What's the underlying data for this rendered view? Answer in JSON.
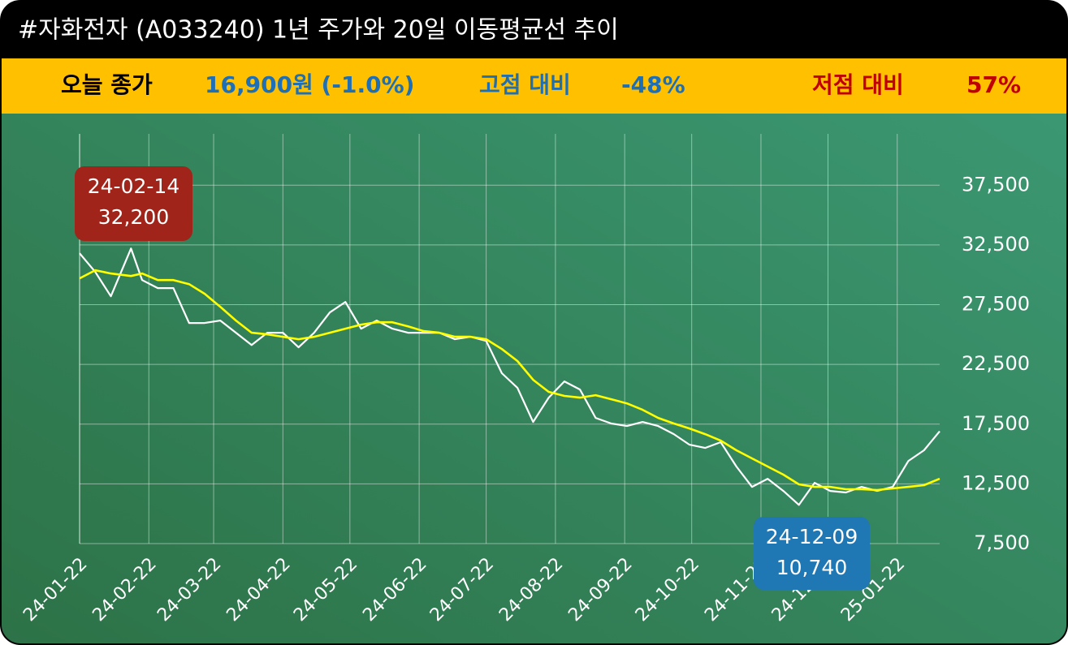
{
  "chart_data": {
    "type": "line",
    "title": "#자화전자 (A033240) 1년 주가와 20일 이동평균선 추이",
    "summary": [
      {
        "label": "오늘 종가",
        "value": "16,900원 (-1.0%)",
        "label_color": "#000000",
        "value_color": "#1f6fb5"
      },
      {
        "label": "고점 대비",
        "value": "-48%",
        "label_color": "#1f6fb5",
        "value_color": "#1f6fb5"
      },
      {
        "label": "저점 대비",
        "value": "57%",
        "label_color": "#c00000",
        "value_color": "#c00000"
      }
    ],
    "x": [
      "24-01-22",
      "24-01-29",
      "24-02-05",
      "24-02-14",
      "24-02-19",
      "24-02-26",
      "24-03-04",
      "24-03-11",
      "24-03-18",
      "24-03-25",
      "24-04-01",
      "24-04-08",
      "24-04-15",
      "24-04-22",
      "24-04-29",
      "24-05-06",
      "24-05-13",
      "24-05-20",
      "24-05-27",
      "24-06-03",
      "24-06-10",
      "24-06-17",
      "24-06-24",
      "24-07-01",
      "24-07-08",
      "24-07-15",
      "24-07-22",
      "24-07-29",
      "24-08-05",
      "24-08-12",
      "24-08-19",
      "24-08-26",
      "24-09-02",
      "24-09-09",
      "24-09-16",
      "24-09-23",
      "24-09-30",
      "24-10-07",
      "24-10-14",
      "24-10-21",
      "24-10-28",
      "24-11-04",
      "24-11-11",
      "24-11-18",
      "24-11-25",
      "24-12-02",
      "24-12-09",
      "24-12-16",
      "24-12-23",
      "24-12-30",
      "25-01-06",
      "25-01-13",
      "25-01-20",
      "25-01-27",
      "25-02-03",
      "25-02-10"
    ],
    "series": [
      {
        "color": "#ffffff",
        "values": [
          31800,
          30240,
          28200,
          32200,
          29560,
          28890,
          28890,
          25970,
          25970,
          26170,
          25150,
          24130,
          25150,
          25150,
          23930,
          25150,
          26850,
          27730,
          25490,
          26170,
          25490,
          25150,
          25150,
          25150,
          24610,
          24810,
          24470,
          21760,
          20540,
          17680,
          19720,
          21080,
          20400,
          18020,
          17550,
          17340,
          17680,
          17340,
          16660,
          15780,
          15510,
          15990,
          13950,
          12250,
          12930,
          11910,
          10740,
          12590,
          11910,
          11780,
          12250,
          11910,
          12250,
          14420,
          15310,
          16900
        ]
      },
      {
        "color": "#ffff00",
        "values": [
          29700,
          30380,
          30110,
          29900,
          30110,
          29560,
          29560,
          29220,
          28410,
          27320,
          26170,
          25150,
          25020,
          24810,
          24610,
          24810,
          25150,
          25490,
          25830,
          26030,
          26030,
          25690,
          25290,
          25150,
          24810,
          24810,
          24610,
          23790,
          22780,
          21210,
          20200,
          19860,
          19720,
          19920,
          19580,
          19240,
          18700,
          18020,
          17550,
          17140,
          16660,
          16120,
          15310,
          14630,
          13950,
          13270,
          12460,
          12250,
          12250,
          12050,
          12050,
          11980,
          12120,
          12250,
          12390,
          12930
        ]
      }
    ],
    "xlim": [
      "24-01-22",
      "25-02-10"
    ],
    "xticks": [
      "24-01-22",
      "24-02-22",
      "24-03-22",
      "24-04-22",
      "24-05-22",
      "24-06-22",
      "24-07-22",
      "24-08-22",
      "24-09-22",
      "24-10-22",
      "24-11-22",
      "24-12-22",
      "25-01-22"
    ],
    "ylim": [
      7500,
      41800
    ],
    "yticks": [
      {
        "value": 7500,
        "label": "7,500"
      },
      {
        "value": 12500,
        "label": "12,500"
      },
      {
        "value": 17500,
        "label": "17,500"
      },
      {
        "value": 22500,
        "label": "22,500"
      },
      {
        "value": 27500,
        "label": "27,500"
      },
      {
        "value": 32500,
        "label": "32,500"
      },
      {
        "value": 37500,
        "label": "37,500"
      }
    ],
    "grid": true,
    "annotations": [
      {
        "lines": [
          "24-02-14",
          "32,200"
        ],
        "color": "#a0241a"
      },
      {
        "lines": [
          "24-12-09",
          "10,740"
        ],
        "color": "#1f77b4"
      }
    ]
  }
}
